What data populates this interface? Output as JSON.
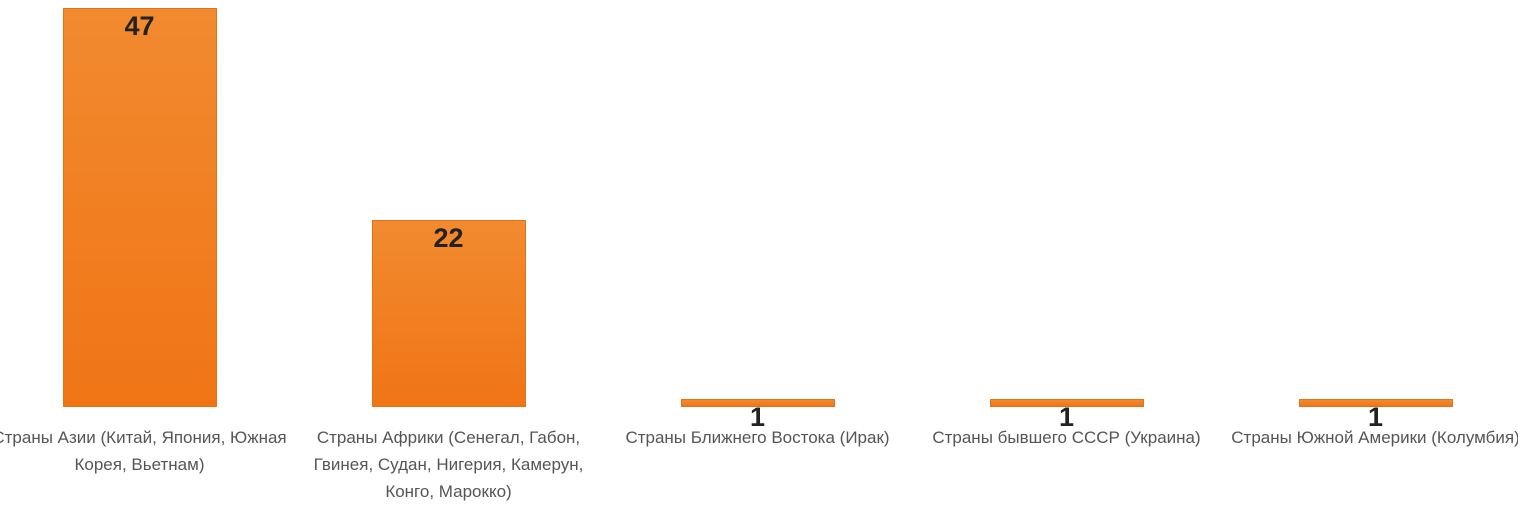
{
  "chart_data": {
    "type": "bar",
    "categories": [
      "Страны Азии (Китай, Япония, Южная Корея, Вьетнам)",
      "Страны Африки (Сенегал, Габон, Гвинея, Судан, Нигерия, Камерун, Конго, Марокко)",
      "Страны Ближнего Востока (Ирак)",
      "Страны бывшего СССР (Украина)",
      "Страны Южной Америки (Колумбия)"
    ],
    "values": [
      47,
      22,
      1,
      1,
      1
    ],
    "color": "#f28a30",
    "ylim": [
      0,
      47
    ]
  }
}
